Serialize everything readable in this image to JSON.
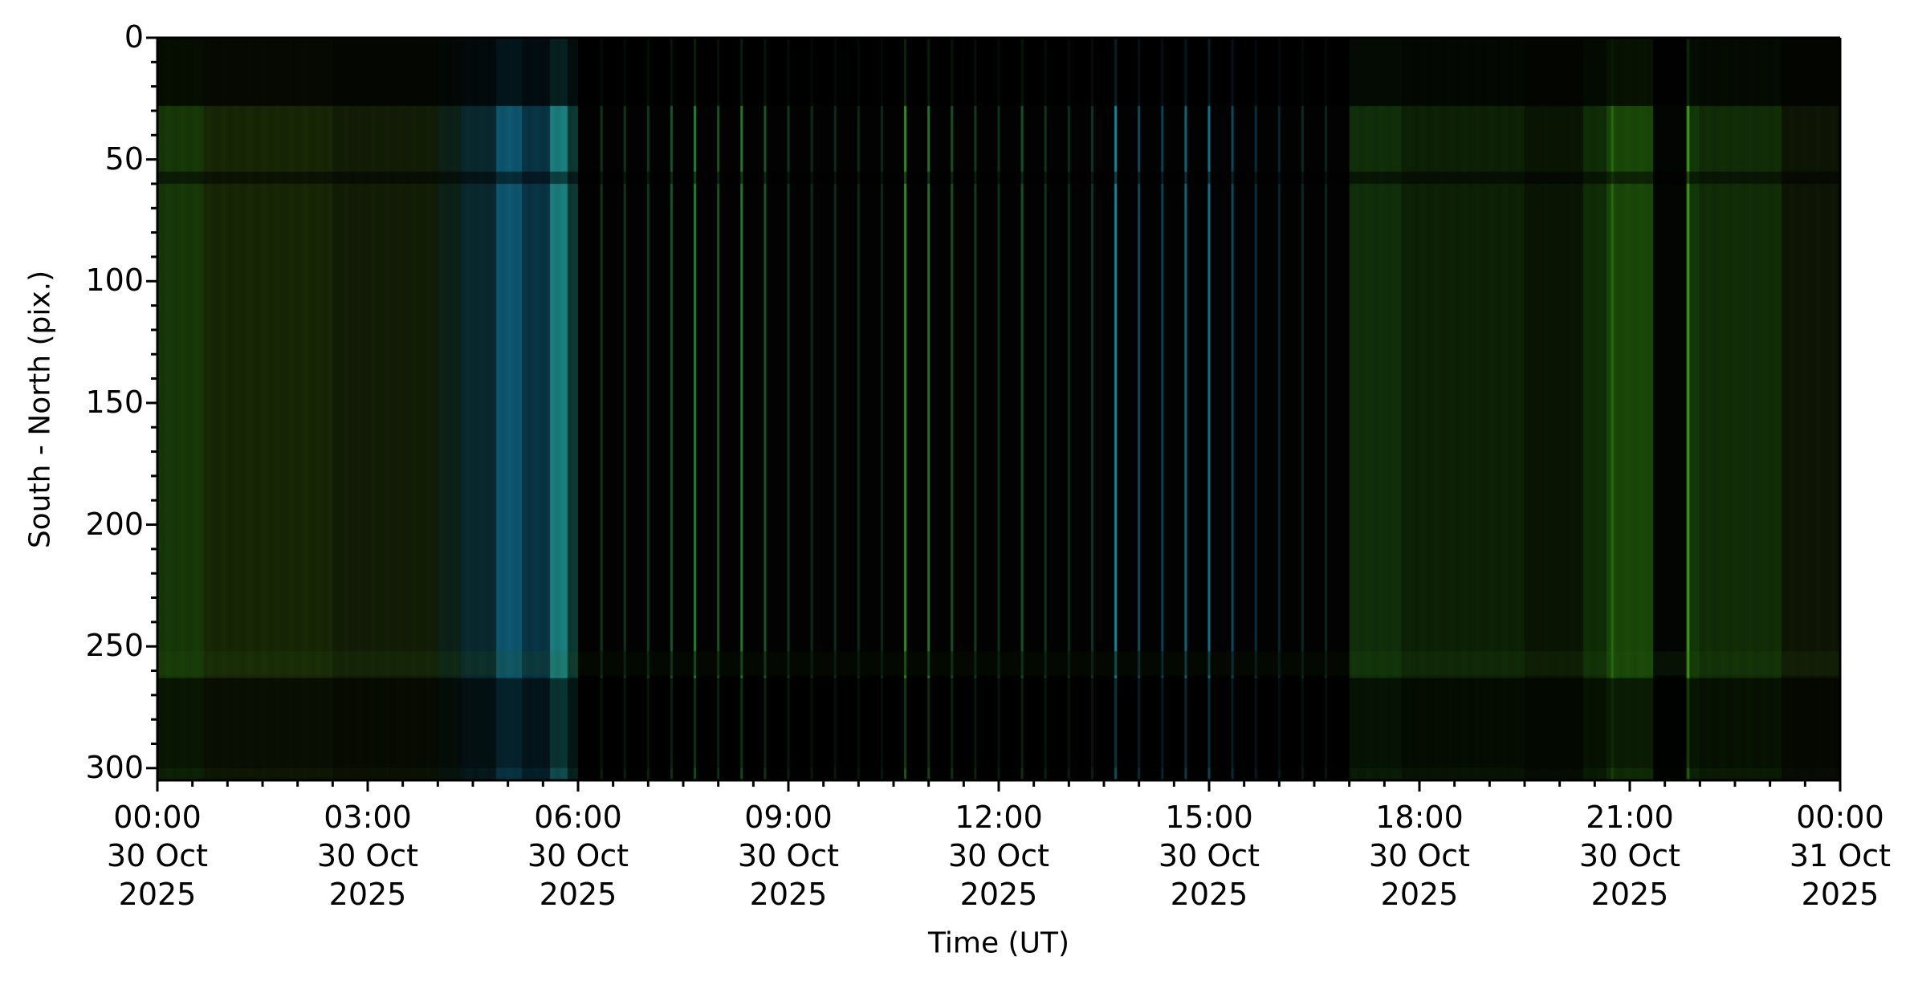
{
  "chart_data": {
    "type": "heatmap",
    "title": "",
    "xlabel": "Time (UT)",
    "ylabel": "South - North (pix.)",
    "xlim": [
      "2025-10-30 00:00",
      "2025-10-31 00:00"
    ],
    "ylim": [
      305,
      0
    ],
    "y_inverted": true,
    "grid": false,
    "x_ticks": [
      {
        "time": "00:00",
        "day": "30 Oct",
        "year": "2025"
      },
      {
        "time": "03:00",
        "day": "30 Oct",
        "year": "2025"
      },
      {
        "time": "06:00",
        "day": "30 Oct",
        "year": "2025"
      },
      {
        "time": "09:00",
        "day": "30 Oct",
        "year": "2025"
      },
      {
        "time": "12:00",
        "day": "30 Oct",
        "year": "2025"
      },
      {
        "time": "15:00",
        "day": "30 Oct",
        "year": "2025"
      },
      {
        "time": "18:00",
        "day": "30 Oct",
        "year": "2025"
      },
      {
        "time": "21:00",
        "day": "30 Oct",
        "year": "2025"
      },
      {
        "time": "00:00",
        "day": "31 Oct",
        "year": "2025"
      }
    ],
    "x_minor_step_hours": 0.5,
    "y_ticks": [
      "0",
      "50",
      "100",
      "150",
      "200",
      "250",
      "300"
    ],
    "y_minor_step": 10,
    "bands": [
      {
        "start": "00:00",
        "end": "00:40",
        "color": "#173a08"
      },
      {
        "start": "00:40",
        "end": "02:30",
        "color": "#182806"
      },
      {
        "start": "02:30",
        "end": "04:00",
        "color": "#131e06"
      },
      {
        "start": "04:00",
        "end": "04:20",
        "color": "#0c2218"
      },
      {
        "start": "04:20",
        "end": "04:50",
        "color": "#0a2a30"
      },
      {
        "start": "04:50",
        "end": "05:12",
        "color": "#0e5870"
      },
      {
        "start": "05:12",
        "end": "05:36",
        "color": "#093646"
      },
      {
        "start": "05:36",
        "end": "05:51",
        "color": "#1c8080"
      },
      {
        "start": "05:51",
        "end": "06:00",
        "color": "#0d3a34"
      },
      {
        "start": "06:00",
        "end": "17:00",
        "color": "#020302"
      },
      {
        "start": "17:00",
        "end": "17:45",
        "color": "#10300a"
      },
      {
        "start": "17:45",
        "end": "19:30",
        "color": "#0d2206"
      },
      {
        "start": "19:30",
        "end": "20:20",
        "color": "#0a1604"
      },
      {
        "start": "20:20",
        "end": "20:40",
        "color": "#0f2e06"
      },
      {
        "start": "20:40",
        "end": "21:20",
        "color": "#1a4a0a"
      },
      {
        "start": "21:20",
        "end": "21:48",
        "color": "#030603"
      },
      {
        "start": "21:48",
        "end": "22:00",
        "color": "#133808"
      },
      {
        "start": "22:00",
        "end": "23:10",
        "color": "#112e07"
      },
      {
        "start": "23:10",
        "end": "00:00+1",
        "color": "#0f1605"
      }
    ],
    "lines": [
      {
        "time": "06:20",
        "color": "#0f3a20"
      },
      {
        "time": "06:40",
        "color": "#103c1e"
      },
      {
        "time": "07:00",
        "color": "#123e20"
      },
      {
        "time": "07:20",
        "color": "#1a5a2a"
      },
      {
        "time": "07:40",
        "color": "#2a8a3a"
      },
      {
        "time": "08:00",
        "color": "#1c5c2a"
      },
      {
        "time": "08:20",
        "color": "#2a7a38"
      },
      {
        "time": "08:40",
        "color": "#1e5e2c"
      },
      {
        "time": "09:00",
        "color": "#143e22"
      },
      {
        "time": "09:20",
        "color": "#0e2e1a"
      },
      {
        "time": "09:40",
        "color": "#0e2e1a"
      },
      {
        "time": "10:00",
        "color": "#0e2e1a"
      },
      {
        "time": "10:20",
        "color": "#0e2e1a"
      },
      {
        "time": "10:40",
        "color": "#3a8a30"
      },
      {
        "time": "11:00",
        "color": "#2e7a30"
      },
      {
        "time": "11:20",
        "color": "#1e5a28"
      },
      {
        "time": "11:40",
        "color": "#163e20"
      },
      {
        "time": "12:00",
        "color": "#103420"
      },
      {
        "time": "12:20",
        "color": "#1c5a2a"
      },
      {
        "time": "12:40",
        "color": "#123a22"
      },
      {
        "time": "13:00",
        "color": "#0e3020"
      },
      {
        "time": "13:20",
        "color": "#0e3a30"
      },
      {
        "time": "13:40",
        "color": "#1e90a0"
      },
      {
        "time": "14:00",
        "color": "#125060"
      },
      {
        "time": "14:20",
        "color": "#0e4658"
      },
      {
        "time": "14:40",
        "color": "#167088"
      },
      {
        "time": "15:00",
        "color": "#1a7a98"
      },
      {
        "time": "15:20",
        "color": "#104a60"
      },
      {
        "time": "15:40",
        "color": "#0c3040"
      },
      {
        "time": "16:00",
        "color": "#0c2a30"
      },
      {
        "time": "16:20",
        "color": "#0c2a26"
      },
      {
        "time": "16:40",
        "color": "#0c261e"
      },
      {
        "time": "21:50",
        "color": "#4aa824"
      },
      {
        "time": "20:45",
        "color": "#2a6a10"
      }
    ],
    "rows": [
      {
        "from": 0,
        "to": 28,
        "darken": 0.75
      },
      {
        "from": 55,
        "to": 60,
        "darken": 0.5
      },
      {
        "from": 252,
        "to": 262,
        "brighten": 0.4
      },
      {
        "from": 263,
        "to": 300,
        "darken": 0.6
      },
      {
        "from": 300,
        "to": 305,
        "darken": 0.4
      }
    ]
  }
}
